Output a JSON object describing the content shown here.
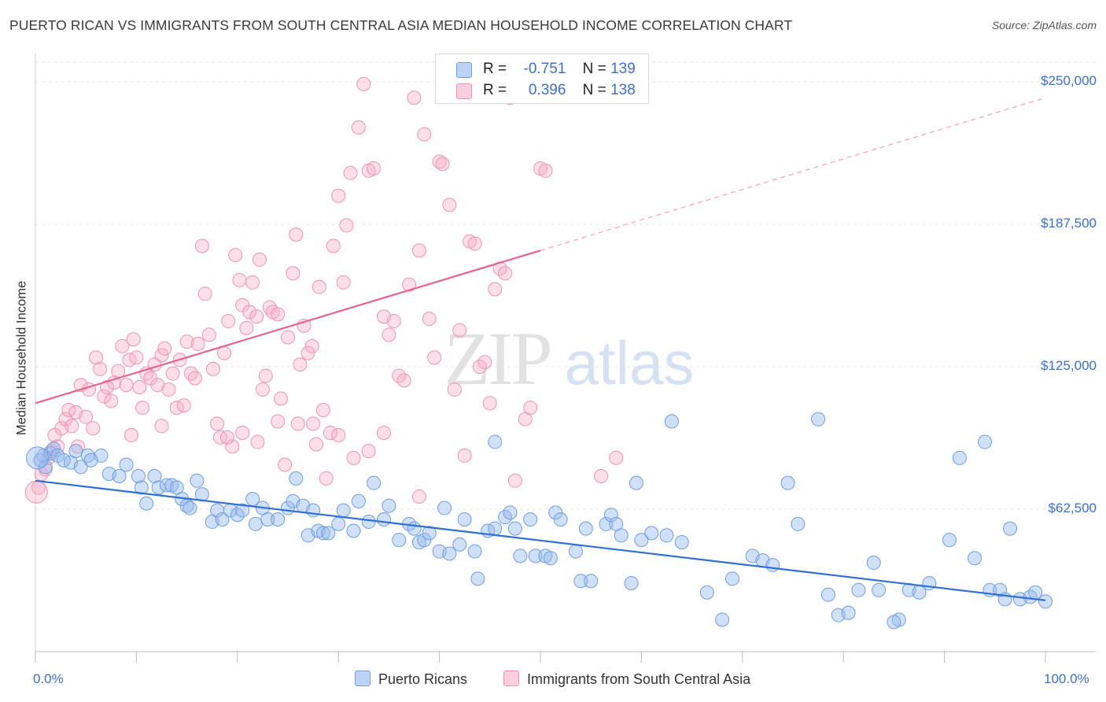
{
  "title": "PUERTO RICAN VS IMMIGRANTS FROM SOUTH CENTRAL ASIA MEDIAN HOUSEHOLD INCOME CORRELATION CHART",
  "source": "Source: ZipAtlas.com",
  "watermark": {
    "zip": "ZIP",
    "atlas": "atlas"
  },
  "legend": {
    "r_label": "R =",
    "n_label": "N =",
    "rows": [
      {
        "r": "-0.751",
        "n": "139",
        "color": "#a9c4ee"
      },
      {
        "r": "0.396",
        "n": "138",
        "color": "#f7b8cb"
      }
    ]
  },
  "bottom_legend": [
    "Puerto Ricans",
    "Immigrants from South Central Asia"
  ],
  "colors": {
    "blue": "#6f9ee4",
    "blue_line": "#2f6fd6",
    "pink": "#f08fb0",
    "pink_line": "#e8628f",
    "axis_text": "#3b6fd1"
  },
  "chart_data": {
    "type": "scatter",
    "title": "PUERTO RICAN VS IMMIGRANTS FROM SOUTH CENTRAL ASIA MEDIAN HOUSEHOLD INCOME CORRELATION CHART",
    "xlabel": "",
    "ylabel": "Median Household Income",
    "xlim": [
      0,
      100
    ],
    "ylim": [
      0,
      260000
    ],
    "x_tick_labels": [
      "0.0%",
      "100.0%"
    ],
    "y_ticks": [
      62500,
      125000,
      187500,
      250000
    ],
    "y_tick_labels": [
      "$62,500",
      "$125,000",
      "$187,500",
      "$250,000"
    ],
    "grid": true,
    "legend_position": "top-center",
    "series": [
      {
        "name": "Puerto Ricans",
        "r": -0.751,
        "n": 139,
        "trend": {
          "x0": 0,
          "y0": 75000,
          "x1": 100,
          "y1": 22500
        },
        "points": [
          [
            0.5,
            84000
          ],
          [
            0.8,
            86000
          ],
          [
            1.0,
            81000
          ],
          [
            1.5,
            87000
          ],
          [
            1.8,
            89000
          ],
          [
            2.2,
            86000
          ],
          [
            2.8,
            84000
          ],
          [
            3.5,
            83000
          ],
          [
            4.0,
            88000
          ],
          [
            4.5,
            81000
          ],
          [
            5.2,
            86000
          ],
          [
            6.5,
            86000
          ],
          [
            5.5,
            84000
          ],
          [
            7.3,
            78000
          ],
          [
            8.3,
            77000
          ],
          [
            9.0,
            82000
          ],
          [
            10.2,
            77000
          ],
          [
            10.5,
            72000
          ],
          [
            11.0,
            65000
          ],
          [
            11.8,
            77000
          ],
          [
            12.2,
            72000
          ],
          [
            13.0,
            73000
          ],
          [
            13.5,
            73000
          ],
          [
            14.0,
            72000
          ],
          [
            14.5,
            67000
          ],
          [
            15.0,
            64000
          ],
          [
            15.3,
            63000
          ],
          [
            16.0,
            75000
          ],
          [
            16.5,
            69000
          ],
          [
            17.5,
            57000
          ],
          [
            18.0,
            62000
          ],
          [
            18.5,
            58000
          ],
          [
            19.3,
            62000
          ],
          [
            20.0,
            60000
          ],
          [
            20.5,
            62000
          ],
          [
            21.5,
            67000
          ],
          [
            21.8,
            56000
          ],
          [
            22.5,
            63000
          ],
          [
            23.0,
            58000
          ],
          [
            24.0,
            58000
          ],
          [
            25.0,
            63000
          ],
          [
            25.5,
            66000
          ],
          [
            25.8,
            76000
          ],
          [
            26.5,
            64000
          ],
          [
            27.0,
            51000
          ],
          [
            27.5,
            62000
          ],
          [
            28.0,
            53000
          ],
          [
            28.5,
            52000
          ],
          [
            29.0,
            52000
          ],
          [
            30.0,
            56000
          ],
          [
            30.5,
            62000
          ],
          [
            31.5,
            53000
          ],
          [
            32.0,
            66000
          ],
          [
            33.0,
            57000
          ],
          [
            33.5,
            74000
          ],
          [
            34.5,
            58000
          ],
          [
            35.0,
            64000
          ],
          [
            36.0,
            49000
          ],
          [
            37.0,
            56000
          ],
          [
            37.5,
            54000
          ],
          [
            38.0,
            48000
          ],
          [
            38.5,
            49000
          ],
          [
            39.0,
            52000
          ],
          [
            40.0,
            44000
          ],
          [
            40.5,
            63000
          ],
          [
            41.0,
            43000
          ],
          [
            42.0,
            47000
          ],
          [
            42.5,
            58000
          ],
          [
            43.5,
            44000
          ],
          [
            43.8,
            32000
          ],
          [
            44.8,
            53000
          ],
          [
            45.5,
            92000
          ],
          [
            45.5,
            54000
          ],
          [
            46.5,
            59000
          ],
          [
            47.0,
            61000
          ],
          [
            47.5,
            54000
          ],
          [
            48.0,
            42000
          ],
          [
            49.0,
            58000
          ],
          [
            49.5,
            42000
          ],
          [
            50.5,
            42000
          ],
          [
            51.0,
            41000
          ],
          [
            51.5,
            61000
          ],
          [
            52.0,
            58000
          ],
          [
            53.5,
            44000
          ],
          [
            54.0,
            31000
          ],
          [
            54.5,
            54000
          ],
          [
            55.0,
            31000
          ],
          [
            56.5,
            56000
          ],
          [
            57.0,
            60000
          ],
          [
            57.5,
            56000
          ],
          [
            58.0,
            51000
          ],
          [
            59.0,
            30000
          ],
          [
            59.5,
            74000
          ],
          [
            60.0,
            49000
          ],
          [
            61.0,
            52000
          ],
          [
            62.5,
            51000
          ],
          [
            63.0,
            101000
          ],
          [
            64.0,
            48000
          ],
          [
            66.5,
            26000
          ],
          [
            68.0,
            14000
          ],
          [
            69.0,
            32000
          ],
          [
            71.0,
            42000
          ],
          [
            72.0,
            40000
          ],
          [
            73.0,
            38000
          ],
          [
            74.5,
            74000
          ],
          [
            75.5,
            56000
          ],
          [
            77.5,
            102000
          ],
          [
            78.5,
            25000
          ],
          [
            79.5,
            16000
          ],
          [
            80.5,
            17000
          ],
          [
            81.5,
            27000
          ],
          [
            83.0,
            39000
          ],
          [
            83.5,
            27000
          ],
          [
            85.5,
            14000
          ],
          [
            85.0,
            13000
          ],
          [
            86.5,
            27000
          ],
          [
            87.5,
            26000
          ],
          [
            88.5,
            30000
          ],
          [
            90.5,
            49000
          ],
          [
            91.5,
            85000
          ],
          [
            93.0,
            41000
          ],
          [
            94.0,
            92000
          ],
          [
            94.5,
            27000
          ],
          [
            95.5,
            27000
          ],
          [
            96.0,
            23000
          ],
          [
            96.5,
            54000
          ],
          [
            97.5,
            23000
          ],
          [
            98.5,
            24000
          ],
          [
            99.0,
            26000
          ],
          [
            100.0,
            22000
          ]
        ]
      },
      {
        "name": "Immigrants from South Central Asia",
        "r": 0.396,
        "n": 138,
        "trend": {
          "x0": 0,
          "y0": 109000,
          "x1": 100,
          "y1": 243000,
          "solid_until_x": 50
        },
        "points": [
          [
            0.3,
            72000
          ],
          [
            0.6,
            78000
          ],
          [
            1.0,
            80000
          ],
          [
            1.3,
            85000
          ],
          [
            1.6,
            88000
          ],
          [
            1.9,
            95000
          ],
          [
            2.2,
            90000
          ],
          [
            2.6,
            98000
          ],
          [
            3.0,
            102000
          ],
          [
            3.3,
            106000
          ],
          [
            3.6,
            99000
          ],
          [
            4.0,
            105000
          ],
          [
            4.2,
            90000
          ],
          [
            4.5,
            117000
          ],
          [
            5.0,
            103000
          ],
          [
            5.3,
            115000
          ],
          [
            5.7,
            98000
          ],
          [
            6.0,
            129000
          ],
          [
            6.4,
            124000
          ],
          [
            6.8,
            112000
          ],
          [
            7.1,
            116000
          ],
          [
            7.5,
            110000
          ],
          [
            7.8,
            118000
          ],
          [
            8.2,
            123000
          ],
          [
            8.6,
            134000
          ],
          [
            9.0,
            117000
          ],
          [
            9.3,
            128000
          ],
          [
            9.7,
            137000
          ],
          [
            10.0,
            129000
          ],
          [
            10.3,
            116000
          ],
          [
            10.6,
            107000
          ],
          [
            11.0,
            122000
          ],
          [
            11.4,
            120000
          ],
          [
            11.8,
            126000
          ],
          [
            12.1,
            117000
          ],
          [
            12.5,
            130000
          ],
          [
            12.8,
            133000
          ],
          [
            13.2,
            115000
          ],
          [
            13.6,
            122000
          ],
          [
            14.0,
            107000
          ],
          [
            14.3,
            128000
          ],
          [
            14.7,
            108000
          ],
          [
            15.0,
            136000
          ],
          [
            15.4,
            122000
          ],
          [
            15.8,
            120000
          ],
          [
            16.1,
            135000
          ],
          [
            16.5,
            178000
          ],
          [
            16.8,
            157000
          ],
          [
            17.2,
            139000
          ],
          [
            17.6,
            124000
          ],
          [
            18.0,
            100000
          ],
          [
            18.3,
            94000
          ],
          [
            18.7,
            131000
          ],
          [
            19.1,
            145000
          ],
          [
            19.5,
            90000
          ],
          [
            19.8,
            174000
          ],
          [
            20.2,
            163000
          ],
          [
            20.5,
            152000
          ],
          [
            20.9,
            142000
          ],
          [
            21.2,
            149000
          ],
          [
            21.5,
            162000
          ],
          [
            21.9,
            147000
          ],
          [
            22.2,
            172000
          ],
          [
            22.5,
            115000
          ],
          [
            22.8,
            121000
          ],
          [
            23.2,
            151000
          ],
          [
            23.5,
            149000
          ],
          [
            24.0,
            148000
          ],
          [
            24.3,
            111000
          ],
          [
            24.7,
            82000
          ],
          [
            25.0,
            138000
          ],
          [
            25.5,
            166000
          ],
          [
            25.8,
            183000
          ],
          [
            26.2,
            126000
          ],
          [
            26.6,
            143000
          ],
          [
            27.0,
            131000
          ],
          [
            27.4,
            134000
          ],
          [
            27.8,
            91000
          ],
          [
            28.1,
            160000
          ],
          [
            28.5,
            106000
          ],
          [
            28.8,
            76000
          ],
          [
            29.2,
            96000
          ],
          [
            29.5,
            178000
          ],
          [
            30.0,
            200000
          ],
          [
            30.5,
            162000
          ],
          [
            30.8,
            187000
          ],
          [
            31.2,
            210000
          ],
          [
            32.0,
            230000
          ],
          [
            32.5,
            249000
          ],
          [
            33.0,
            211000
          ],
          [
            33.5,
            212000
          ],
          [
            34.5,
            147000
          ],
          [
            35.0,
            139000
          ],
          [
            35.5,
            145000
          ],
          [
            36.0,
            121000
          ],
          [
            36.5,
            119000
          ],
          [
            37.0,
            161000
          ],
          [
            37.5,
            243000
          ],
          [
            38.0,
            176000
          ],
          [
            38.5,
            227000
          ],
          [
            39.0,
            146000
          ],
          [
            39.5,
            129000
          ],
          [
            40.0,
            215000
          ],
          [
            40.3,
            214000
          ],
          [
            41.0,
            196000
          ],
          [
            41.5,
            115000
          ],
          [
            42.0,
            141000
          ],
          [
            43.0,
            180000
          ],
          [
            43.5,
            179000
          ],
          [
            44.0,
            125000
          ],
          [
            44.5,
            127000
          ],
          [
            45.0,
            109000
          ],
          [
            45.5,
            159000
          ],
          [
            46.0,
            168000
          ],
          [
            46.5,
            166000
          ],
          [
            47.0,
            243000
          ],
          [
            47.5,
            75000
          ],
          [
            48.5,
            102000
          ],
          [
            49.0,
            107000
          ],
          [
            50.0,
            212000
          ],
          [
            50.5,
            211000
          ],
          [
            56.0,
            77000
          ],
          [
            57.5,
            85000
          ],
          [
            42.5,
            86000
          ],
          [
            38.0,
            68000
          ],
          [
            34.5,
            96000
          ],
          [
            33.0,
            88000
          ],
          [
            31.5,
            85000
          ],
          [
            30.0,
            95000
          ],
          [
            27.5,
            100000
          ],
          [
            26.0,
            100000
          ],
          [
            24.0,
            101000
          ],
          [
            22.0,
            92000
          ],
          [
            20.5,
            96000
          ],
          [
            19.0,
            94000
          ],
          [
            12.5,
            99000
          ],
          [
            9.5,
            95000
          ]
        ]
      }
    ]
  }
}
